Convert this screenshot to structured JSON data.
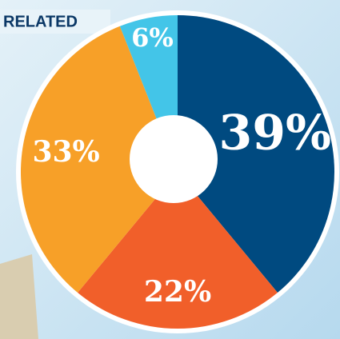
{
  "chart_data": {
    "type": "pie",
    "title": "RELATED",
    "categories": [
      null,
      null,
      null,
      null
    ],
    "values": [
      39,
      22,
      33,
      6
    ],
    "value_labels": [
      "39%",
      "22%",
      "33%",
      "6%"
    ],
    "colors": [
      "#004a80",
      "#f15f2a",
      "#f7a028",
      "#43c5e8"
    ],
    "start": "top",
    "direction": "clockwise",
    "donut": true
  }
}
